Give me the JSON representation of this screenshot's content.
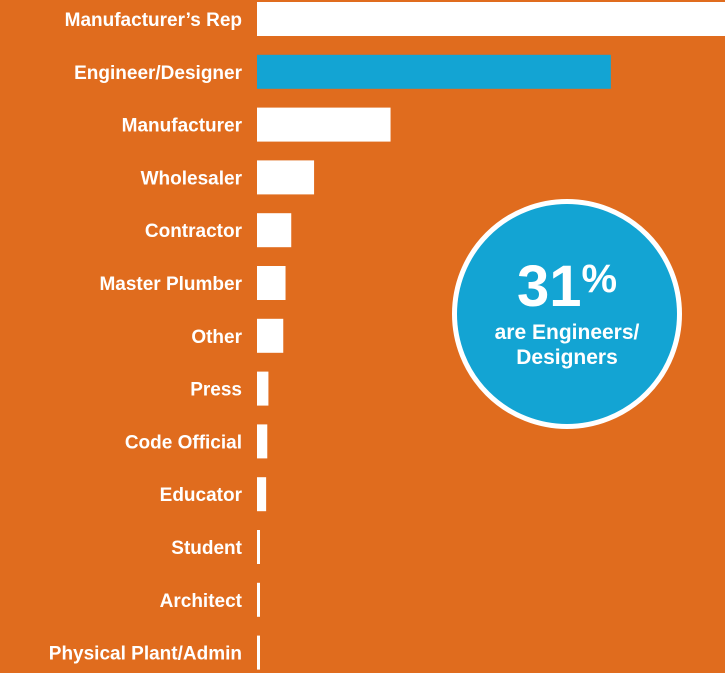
{
  "colors": {
    "background": "#E06C1E",
    "bar": "#FFFFFF",
    "highlight": "#13A4D3"
  },
  "chart_data": {
    "type": "bar",
    "orientation": "horizontal",
    "categories": [
      "Manufacturer’s Rep",
      "Engineer/Designer",
      "Manufacturer",
      "Wholesaler",
      "Contractor",
      "Master Plumber",
      "Other",
      "Press",
      "Code Official",
      "Educator",
      "Student",
      "Architect",
      "Physical Plant/Admin"
    ],
    "values": [
      41.0,
      31.0,
      11.7,
      5.0,
      3.0,
      2.5,
      2.3,
      1.0,
      0.9,
      0.8,
      0.25,
      0.25,
      0.25
    ],
    "highlight_category": "Engineer/Designer",
    "xlim": [
      0,
      41
    ],
    "grid": false,
    "legend": "none",
    "xlabel": "",
    "ylabel": "",
    "annotation": {
      "value": "31",
      "unit": "%",
      "text_line1": "are Engineers/",
      "text_line2": "Designers"
    }
  }
}
